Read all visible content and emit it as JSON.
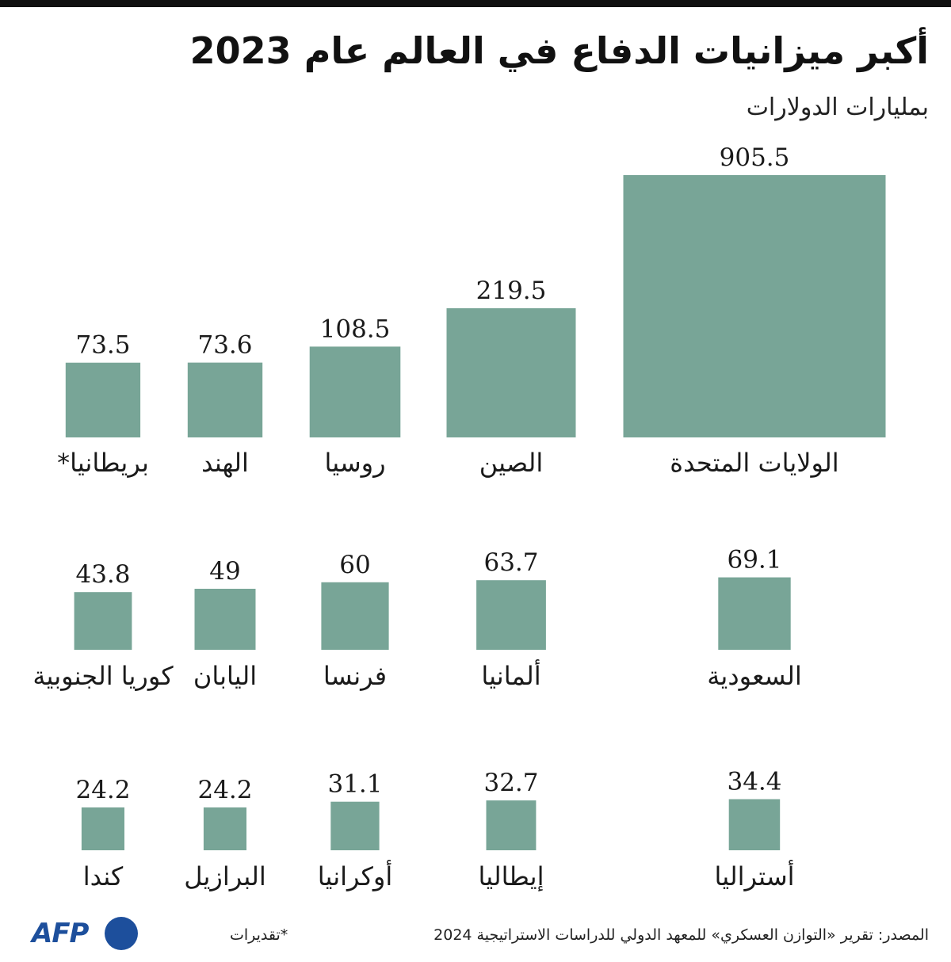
{
  "title": "أكبر ميزانيات الدفاع في العالم عام 2023",
  "subtitle": "بمليارات الدولارات",
  "chart_data": {
    "type": "bar",
    "encoding": "square-area",
    "title": "أكبر ميزانيات الدفاع في العالم عام 2023",
    "subtitle": "بمليارات الدولارات",
    "unit": "بمليارات الدولارات",
    "color": "#78a597",
    "rows": [
      {
        "categories": [
          "الولايات المتحدة",
          "الصين",
          "روسيا",
          "الهند",
          "بريطانيا*"
        ],
        "values": [
          905.5,
          219.5,
          108.5,
          73.6,
          73.5
        ],
        "labels": [
          "905.5",
          "219.5",
          "108.5",
          "73.6",
          "73.5"
        ]
      },
      {
        "categories": [
          "السعودية",
          "ألمانيا",
          "فرنسا",
          "اليابان",
          "كوريا الجنوبية"
        ],
        "values": [
          69.1,
          63.7,
          60,
          49,
          43.8
        ],
        "labels": [
          "69.1",
          "63.7",
          "60",
          "49",
          "43.8"
        ]
      },
      {
        "categories": [
          "أستراليا",
          "إيطاليا",
          "أوكرانيا",
          "البرازيل",
          "كندا"
        ],
        "values": [
          34.4,
          32.7,
          31.1,
          24.2,
          24.2
        ],
        "labels": [
          "34.4",
          "32.7",
          "31.1",
          "24.2",
          "24.2"
        ]
      }
    ]
  },
  "footer": {
    "source": "المصدر: تقرير «التوازن العسكري» للمعهد الدولي للدراسات الاستراتيجية 2024",
    "note": "*تقديرات",
    "logo": "AFP"
  }
}
